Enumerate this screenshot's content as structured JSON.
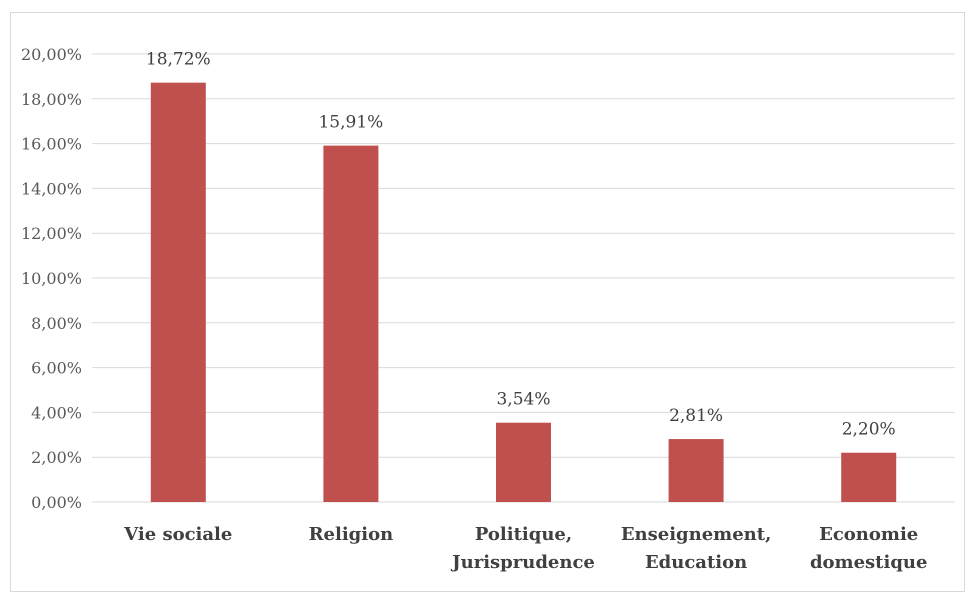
{
  "chart_data": {
    "type": "bar",
    "categories": [
      [
        "Vie sociale"
      ],
      [
        "Religion"
      ],
      [
        "Politique,",
        "Jurisprudence"
      ],
      [
        "Enseignement,",
        "Education"
      ],
      [
        "Economie",
        "domestique"
      ]
    ],
    "values": [
      18.72,
      15.91,
      3.54,
      2.81,
      2.2
    ],
    "data_labels": [
      "18,72%",
      "15,91%",
      "3,54%",
      "2,81%",
      "2,20%"
    ],
    "yticks": [
      0,
      2,
      4,
      6,
      8,
      10,
      12,
      14,
      16,
      18,
      20
    ],
    "ytick_labels": [
      "0,00%",
      "2,00%",
      "4,00%",
      "6,00%",
      "8,00%",
      "10,00%",
      "12,00%",
      "14,00%",
      "16,00%",
      "18,00%",
      "20,00%"
    ],
    "ylim": [
      0,
      20
    ],
    "grid": true,
    "legend": "none",
    "colors": {
      "bar": "#c0504d",
      "grid": "#d9d9d9"
    }
  }
}
